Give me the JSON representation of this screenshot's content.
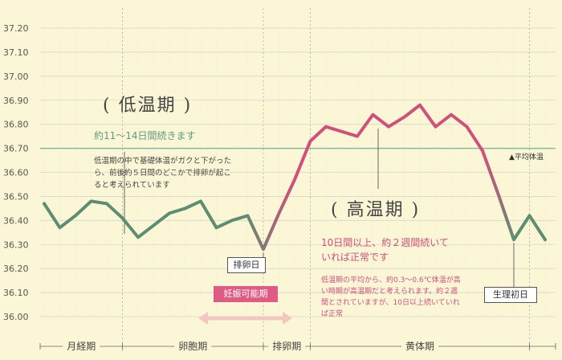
{
  "chart_data": {
    "type": "line",
    "ylim": [
      36.0,
      37.2
    ],
    "y_ticks": [
      "37.20",
      "37.10",
      "37.00",
      "36.90",
      "36.80",
      "36.70",
      "36.60",
      "36.50",
      "36.40",
      "36.30",
      "36.20",
      "36.10",
      "36.00"
    ],
    "y_tick_values": [
      37.2,
      37.1,
      37.0,
      36.9,
      36.8,
      36.7,
      36.6,
      36.5,
      36.4,
      36.3,
      36.2,
      36.1,
      36.0
    ],
    "series": [
      {
        "values": [
          36.47,
          36.37,
          36.42,
          36.48,
          36.47,
          36.41,
          36.33,
          36.38,
          36.43,
          36.45,
          36.48,
          36.37,
          36.4,
          36.42,
          36.28,
          36.43,
          36.57,
          36.73,
          36.79,
          36.77,
          36.75,
          36.84,
          36.79,
          36.83,
          36.88,
          36.79,
          36.84,
          36.79,
          36.69,
          36.51,
          36.32,
          36.42,
          36.32
        ]
      }
    ],
    "average_line": {
      "value": 36.7,
      "label": "▲平均体温"
    },
    "phases": [
      "月経期",
      "卵胞期",
      "排卵期",
      "黄体期"
    ],
    "grid": true,
    "colors": {
      "low": "#5e8e72",
      "high": "#d0507c",
      "average": "#88b8a2",
      "background": "#fbf7d6"
    }
  },
  "annotations": {
    "low_title": "( 低温期 )",
    "low_sub": "約11〜14日間続きます",
    "low_desc": "低温期の中で基礎体温がガクと下がったら、前後約５日間のどこかで排卵が起こると考えられています",
    "high_title": "( 高温期 )",
    "high_sub": "10日間以上、約２週間続いていれば正常です",
    "high_desc": "低温期の平均から、約0.3〜0.6℃体温が高い時期が高温期だと考えられます。約２週間とされていますが、10日以上続いていれば正常",
    "ovulation_label": "排卵日",
    "period_label": "生理初日",
    "fertile_label": "妊娠可能期"
  }
}
